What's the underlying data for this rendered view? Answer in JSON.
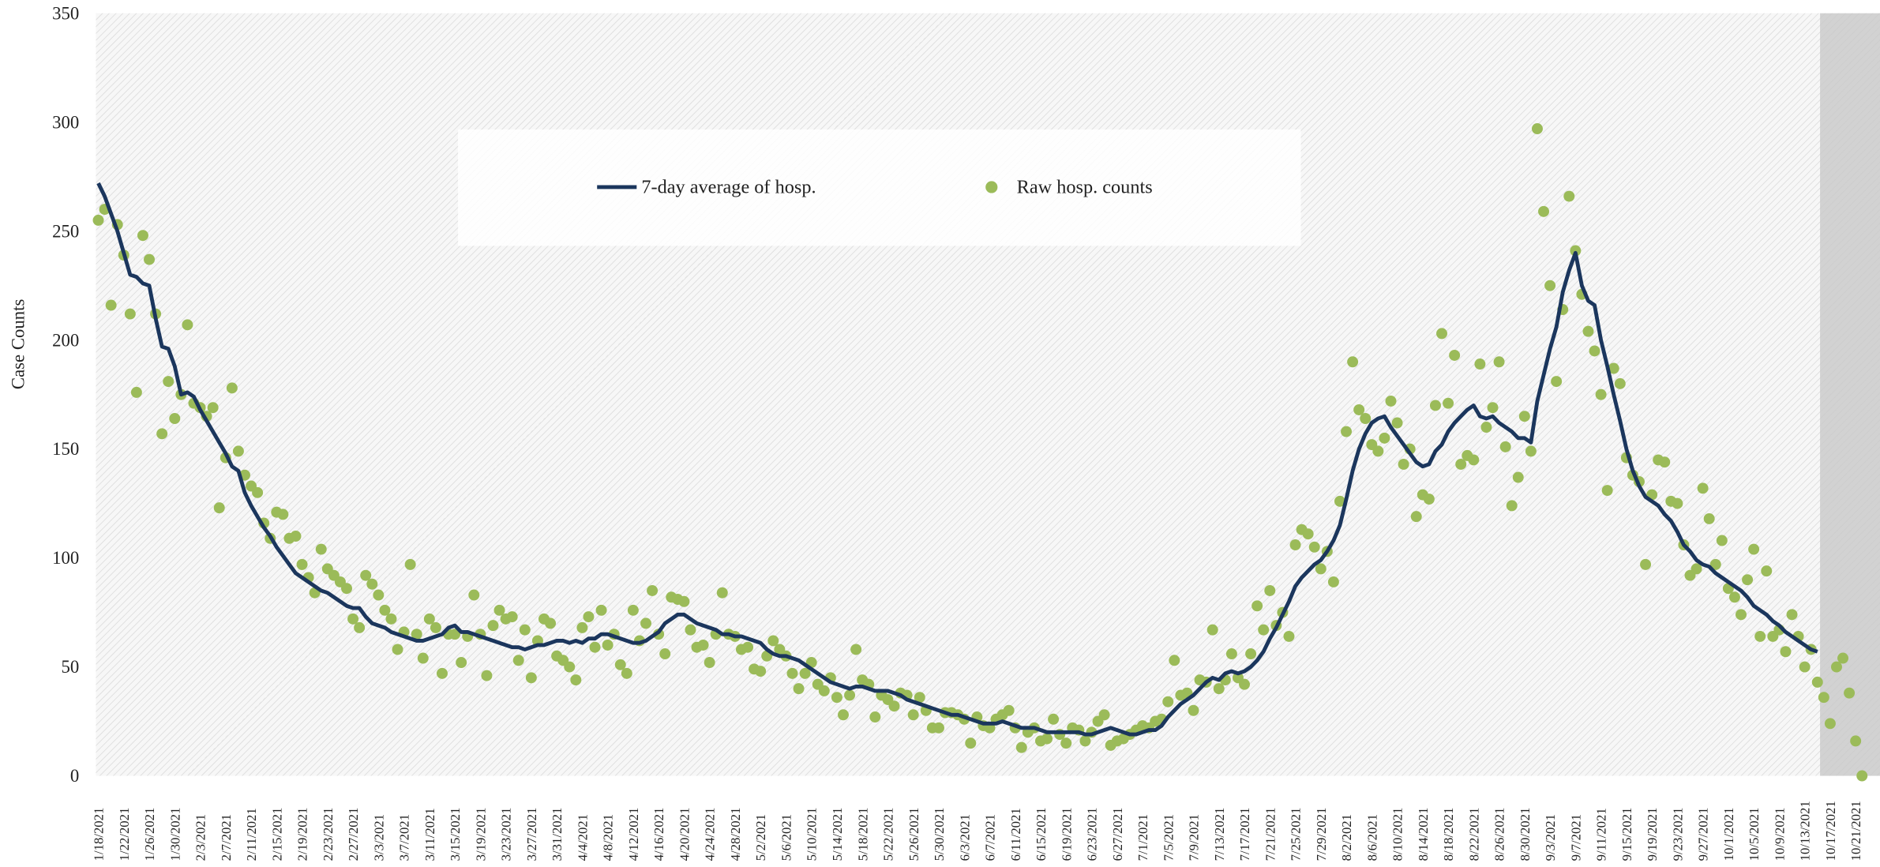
{
  "chart_data": {
    "type": "line_scatter",
    "ylabel": "Case Counts",
    "legend": "upper center",
    "grid": false,
    "ylim": [
      0,
      350
    ],
    "yticks": [
      0,
      50,
      100,
      150,
      200,
      250,
      300,
      350
    ],
    "categories": [
      "1/18/2021",
      null,
      null,
      null,
      "1/22/2021",
      null,
      null,
      null,
      "1/26/2021",
      null,
      null,
      null,
      "1/30/2021",
      null,
      null,
      null,
      "2/3/2021",
      null,
      null,
      null,
      "2/7/2021",
      null,
      null,
      null,
      "2/11/2021",
      null,
      null,
      null,
      "2/15/2021",
      null,
      null,
      null,
      "2/19/2021",
      null,
      null,
      null,
      "2/23/2021",
      null,
      null,
      null,
      "2/27/2021",
      null,
      null,
      null,
      "3/3/2021",
      null,
      null,
      null,
      "3/7/2021",
      null,
      null,
      null,
      "3/11/2021",
      null,
      null,
      null,
      "3/15/2021",
      null,
      null,
      null,
      "3/19/2021",
      null,
      null,
      null,
      "3/23/2021",
      null,
      null,
      null,
      "3/27/2021",
      null,
      null,
      null,
      "3/31/2021",
      null,
      null,
      null,
      "4/4/2021",
      null,
      null,
      null,
      "4/8/2021",
      null,
      null,
      null,
      "4/12/2021",
      null,
      null,
      null,
      "4/16/2021",
      null,
      null,
      null,
      "4/20/2021",
      null,
      null,
      null,
      "4/24/2021",
      null,
      null,
      null,
      "4/28/2021",
      null,
      null,
      null,
      "5/2/2021",
      null,
      null,
      null,
      "5/6/2021",
      null,
      null,
      null,
      "5/10/2021",
      null,
      null,
      null,
      "5/14/2021",
      null,
      null,
      null,
      "5/18/2021",
      null,
      null,
      null,
      "5/22/2021",
      null,
      null,
      null,
      "5/26/2021",
      null,
      null,
      null,
      "5/30/2021",
      null,
      null,
      null,
      "6/3/2021",
      null,
      null,
      null,
      "6/7/2021",
      null,
      null,
      null,
      "6/11/2021",
      null,
      null,
      null,
      "6/15/2021",
      null,
      null,
      null,
      "6/19/2021",
      null,
      null,
      null,
      "6/23/2021",
      null,
      null,
      null,
      "6/27/2021",
      null,
      null,
      null,
      "7/1/2021",
      null,
      null,
      null,
      "7/5/2021",
      null,
      null,
      null,
      "7/9/2021",
      null,
      null,
      null,
      "7/13/2021",
      null,
      null,
      null,
      "7/17/2021",
      null,
      null,
      null,
      "7/21/2021",
      null,
      null,
      null,
      "7/25/2021",
      null,
      null,
      null,
      "7/29/2021",
      null,
      null,
      null,
      "8/2/2021",
      null,
      null,
      null,
      "8/6/2021",
      null,
      null,
      null,
      "8/10/2021",
      null,
      null,
      null,
      "8/14/2021",
      null,
      null,
      null,
      "8/18/2021",
      null,
      null,
      null,
      "8/22/2021",
      null,
      null,
      null,
      "8/26/2021",
      null,
      null,
      null,
      "8/30/2021",
      null,
      null,
      null,
      "9/3/2021",
      null,
      null,
      null,
      "9/7/2021",
      null,
      null,
      null,
      "9/11/2021",
      null,
      null,
      null,
      "9/15/2021",
      null,
      null,
      null,
      "9/19/2021",
      null,
      null,
      null,
      "9/23/2021",
      null,
      null,
      null,
      "9/27/2021",
      null,
      null,
      null,
      "10/1/2021",
      null,
      null,
      null,
      "10/5/2021",
      null,
      null,
      null,
      "10/9/2021",
      null,
      null,
      null,
      "10/13/2021",
      null,
      null,
      null,
      "10/17/2021",
      null,
      null,
      null,
      "10/21/2021",
      null
    ],
    "series": [
      {
        "name": "7-day average of hosp.",
        "kind": "line",
        "color": "#1b365d",
        "values": [
          272,
          266,
          258,
          250,
          240,
          230,
          229,
          226,
          225,
          210,
          197,
          196,
          188,
          175,
          176,
          174,
          168,
          163,
          158,
          153,
          148,
          142,
          140,
          130,
          124,
          119,
          114,
          110,
          105,
          101,
          97,
          93,
          91,
          89,
          87,
          85,
          84,
          82,
          80,
          78,
          77,
          77,
          73,
          70,
          69,
          68,
          66,
          65,
          64,
          63,
          62,
          62,
          63,
          64,
          65,
          68,
          69,
          66,
          66,
          65,
          64,
          63,
          62,
          61,
          60,
          59,
          59,
          58,
          59,
          60,
          60,
          61,
          62,
          62,
          61,
          62,
          61,
          63,
          63,
          65,
          65,
          64,
          63,
          62,
          61,
          61,
          62,
          64,
          66,
          70,
          72,
          74,
          74,
          72,
          70,
          69,
          68,
          67,
          65,
          65,
          64,
          64,
          63,
          62,
          61,
          58,
          56,
          55,
          55,
          54,
          53,
          51,
          49,
          47,
          45,
          43,
          42,
          41,
          40,
          41,
          41,
          40,
          39,
          39,
          39,
          38,
          37,
          35,
          34,
          33,
          32,
          31,
          30,
          29,
          28,
          28,
          27,
          26,
          25,
          24,
          24,
          24,
          25,
          24,
          23,
          22,
          22,
          22,
          21,
          20,
          20,
          20,
          20,
          20,
          20,
          19,
          19,
          20,
          21,
          22,
          21,
          20,
          19,
          19,
          20,
          21,
          21,
          23,
          27,
          30,
          33,
          35,
          37,
          40,
          43,
          45,
          44,
          47,
          48,
          47,
          48,
          50,
          53,
          57,
          63,
          68,
          74,
          80,
          87,
          91,
          94,
          97,
          99,
          103,
          108,
          115,
          127,
          140,
          150,
          157,
          162,
          164,
          165,
          160,
          156,
          152,
          148,
          144,
          142,
          143,
          149,
          152,
          158,
          162,
          165,
          168,
          170,
          165,
          164,
          165,
          162,
          160,
          158,
          155,
          155,
          153,
          172,
          184,
          196,
          206,
          222,
          232,
          240,
          225,
          218,
          216,
          200,
          188,
          175,
          163,
          150,
          140,
          133,
          128,
          126,
          124,
          120,
          117,
          112,
          106,
          103,
          99,
          97,
          96,
          93,
          91,
          89,
          87,
          85,
          82,
          78,
          76,
          74,
          71,
          69,
          66,
          64,
          62,
          60,
          58,
          57,
          null,
          null,
          null,
          null,
          null,
          null,
          null
        ]
      },
      {
        "name": "Raw hosp. counts",
        "kind": "scatter",
        "color": "#9bbb59",
        "values": [
          255,
          260,
          216,
          253,
          239,
          212,
          176,
          248,
          237,
          212,
          157,
          181,
          164,
          175,
          207,
          171,
          169,
          165,
          169,
          123,
          146,
          178,
          149,
          138,
          133,
          130,
          116,
          109,
          121,
          120,
          109,
          110,
          97,
          91,
          84,
          104,
          95,
          92,
          89,
          86,
          72,
          68,
          92,
          88,
          83,
          76,
          72,
          58,
          66,
          97,
          65,
          54,
          72,
          68,
          47,
          65,
          65,
          52,
          64,
          83,
          65,
          46,
          69,
          76,
          72,
          73,
          53,
          67,
          45,
          62,
          72,
          70,
          55,
          53,
          50,
          44,
          68,
          73,
          59,
          76,
          60,
          65,
          51,
          47,
          76,
          62,
          70,
          85,
          65,
          56,
          82,
          81,
          80,
          67,
          59,
          60,
          52,
          65,
          84,
          65,
          64,
          58,
          59,
          49,
          48,
          55,
          62,
          58,
          55,
          47,
          40,
          47,
          52,
          42,
          39,
          45,
          36,
          28,
          37,
          58,
          44,
          42,
          27,
          37,
          35,
          32,
          38,
          37,
          28,
          36,
          30,
          22,
          22,
          29,
          29,
          28,
          26,
          15,
          27,
          23,
          22,
          26,
          28,
          30,
          22,
          13,
          20,
          22,
          16,
          17,
          26,
          19,
          15,
          22,
          21,
          16,
          20,
          25,
          28,
          14,
          16,
          17,
          19,
          21,
          23,
          22,
          25,
          26,
          34,
          53,
          37,
          38,
          30,
          44,
          43,
          67,
          40,
          44,
          56,
          45,
          42,
          56,
          78,
          67,
          85,
          69,
          75,
          64,
          106,
          113,
          111,
          105,
          95,
          103,
          89,
          126,
          158,
          190,
          168,
          164,
          152,
          149,
          155,
          172,
          162,
          143,
          150,
          119,
          129,
          127,
          170,
          203,
          171,
          193,
          143,
          147,
          145,
          189,
          160,
          169,
          190,
          151,
          124,
          137,
          165,
          149,
          297,
          259,
          225,
          181,
          214,
          266,
          241,
          221,
          204,
          195,
          175,
          131,
          187,
          180,
          146,
          138,
          135,
          97,
          129,
          145,
          144,
          126,
          125,
          106,
          92,
          95,
          132,
          118,
          97,
          108,
          86,
          82,
          74,
          90,
          104,
          64,
          94,
          64,
          67,
          57,
          74,
          64,
          50,
          58,
          43,
          36,
          24,
          50,
          54,
          38,
          16,
          0
        ]
      }
    ]
  }
}
